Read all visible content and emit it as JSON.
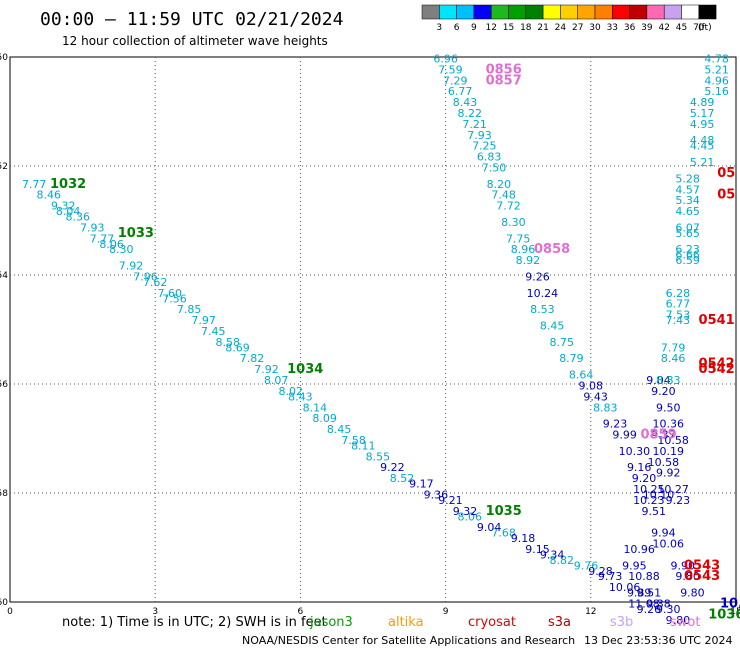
{
  "title": "00:00 – 11:59 UTC 02/21/2024",
  "subtitle": "12 hour collection of altimeter wave heights",
  "colorbar": {
    "labels": [
      "3",
      "6",
      "9",
      "12",
      "15",
      "18",
      "21",
      "24",
      "27",
      "30",
      "33",
      "36",
      "39",
      "42",
      "45",
      "70"
    ],
    "unit": "(ft)",
    "colors": [
      "#7f7f7f",
      "#00e5ff",
      "#00bfff",
      "#0000ff",
      "#1fb81f",
      "#00a000",
      "#008000",
      "#ffff00",
      "#ffcf00",
      "#ffa500",
      "#ff8000",
      "#ff0000",
      "#c00000",
      "#ff69b4",
      "#c8a2f0",
      "#ffffff",
      "#000000"
    ]
  },
  "note": "note:  1) Time is in UTC; 2) SWH is in feet",
  "satellites": [
    {
      "name": "jason3",
      "color": "#00a000"
    },
    {
      "name": "altika",
      "color": "#ff9900"
    },
    {
      "name": "cryosat",
      "color": "#e00000"
    },
    {
      "name": "s3a",
      "color": "#b00000"
    },
    {
      "name": "s3b",
      "color": "#c8a2f0"
    },
    {
      "name": "swot",
      "color": "#e070d0"
    }
  ],
  "credit": "NOAA/NESDIS Center for Satellite Applications and Research",
  "credit_time": "13 Dec 23:53:36 UTC 2024",
  "chart_data": {
    "type": "scatter",
    "xlim": [
      0,
      15
    ],
    "ylim": [
      -60,
      -50
    ],
    "xticks": [
      0,
      3,
      6,
      9,
      12,
      15
    ],
    "yticks": [
      -50,
      -52,
      -54,
      -56,
      -58,
      -60
    ],
    "grid": true,
    "series": [
      {
        "name": "jason3",
        "color": "#00aacc",
        "points": [
          {
            "x": 0.5,
            "y": -52.4,
            "v": "7.77"
          },
          {
            "x": 0.8,
            "y": -52.6,
            "v": "8.46"
          },
          {
            "x": 1.1,
            "y": -52.8,
            "v": "9.32"
          },
          {
            "x": 1.2,
            "y": -52.9,
            "v": "8.04"
          },
          {
            "x": 1.4,
            "y": -53.0,
            "v": "8.36"
          },
          {
            "x": 1.7,
            "y": -53.2,
            "v": "7.93"
          },
          {
            "x": 1.9,
            "y": -53.4,
            "v": "7.77"
          },
          {
            "x": 2.1,
            "y": -53.5,
            "v": "8.06"
          },
          {
            "x": 2.3,
            "y": -53.6,
            "v": "8.30"
          },
          {
            "x": 2.5,
            "y": -53.9,
            "v": "7.92"
          },
          {
            "x": 2.8,
            "y": -54.1,
            "v": "7.96"
          },
          {
            "x": 3.0,
            "y": -54.2,
            "v": "7.62"
          },
          {
            "x": 3.3,
            "y": -54.4,
            "v": "7.60"
          },
          {
            "x": 3.4,
            "y": -54.5,
            "v": "7.56"
          },
          {
            "x": 3.7,
            "y": -54.7,
            "v": "7.85"
          },
          {
            "x": 4.0,
            "y": -54.9,
            "v": "7.97"
          },
          {
            "x": 4.2,
            "y": -55.1,
            "v": "7.45"
          },
          {
            "x": 4.5,
            "y": -55.3,
            "v": "8.58"
          },
          {
            "x": 4.7,
            "y": -55.4,
            "v": "8.69"
          },
          {
            "x": 5.0,
            "y": -55.6,
            "v": "7.82"
          },
          {
            "x": 5.3,
            "y": -55.8,
            "v": "7.92"
          },
          {
            "x": 5.5,
            "y": -56.0,
            "v": "8.07"
          },
          {
            "x": 5.8,
            "y": -56.2,
            "v": "8.02"
          },
          {
            "x": 6.0,
            "y": -56.3,
            "v": "8.43"
          },
          {
            "x": 6.3,
            "y": -56.5,
            "v": "8.14"
          },
          {
            "x": 6.5,
            "y": -56.7,
            "v": "8.09"
          },
          {
            "x": 6.8,
            "y": -56.9,
            "v": "8.45"
          },
          {
            "x": 7.1,
            "y": -57.1,
            "v": "7.58"
          },
          {
            "x": 7.3,
            "y": -57.2,
            "v": "8.11"
          },
          {
            "x": 7.6,
            "y": -57.4,
            "v": "8.55"
          },
          {
            "x": 8.1,
            "y": -57.8,
            "v": "8.52"
          },
          {
            "x": 9.5,
            "y": -58.5,
            "v": "8.06"
          },
          {
            "x": 10.2,
            "y": -58.8,
            "v": "7.68"
          },
          {
            "x": 11.4,
            "y": -59.3,
            "v": "8.82"
          },
          {
            "x": 11.9,
            "y": -59.4,
            "v": "9.76"
          }
        ]
      },
      {
        "name": "jason3-dark",
        "color": "#0000bb",
        "points": [
          {
            "x": 7.9,
            "y": -57.6,
            "v": "9.22"
          },
          {
            "x": 8.5,
            "y": -57.9,
            "v": "9.17"
          },
          {
            "x": 8.8,
            "y": -58.1,
            "v": "9.36"
          },
          {
            "x": 9.1,
            "y": -58.2,
            "v": "9.21"
          },
          {
            "x": 9.4,
            "y": -58.4,
            "v": "9.32"
          },
          {
            "x": 9.9,
            "y": -58.7,
            "v": "9.04"
          },
          {
            "x": 10.6,
            "y": -58.9,
            "v": "9.18"
          },
          {
            "x": 10.9,
            "y": -59.1,
            "v": "9.15"
          },
          {
            "x": 11.2,
            "y": -59.2,
            "v": "9.34"
          },
          {
            "x": 12.2,
            "y": -59.5,
            "v": "9.28"
          },
          {
            "x": 12.4,
            "y": -59.6,
            "v": "9.73"
          },
          {
            "x": 12.7,
            "y": -59.8,
            "v": "10.06"
          },
          {
            "x": 13.0,
            "y": -59.9,
            "v": "9.89"
          },
          {
            "x": 13.1,
            "y": -60.1,
            "v": "11.08"
          },
          {
            "x": 13.2,
            "y": -60.2,
            "v": "9.26"
          }
        ]
      },
      {
        "name": "track2",
        "color": "#00aacc",
        "points": [
          {
            "x": 9.0,
            "y": -50.1,
            "v": "6.96"
          },
          {
            "x": 9.1,
            "y": -50.3,
            "v": "7.59"
          },
          {
            "x": 9.2,
            "y": -50.5,
            "v": "7.29"
          },
          {
            "x": 9.3,
            "y": -50.7,
            "v": "6.77"
          },
          {
            "x": 9.4,
            "y": -50.9,
            "v": "8.43"
          },
          {
            "x": 9.5,
            "y": -51.1,
            "v": "8.22"
          },
          {
            "x": 9.6,
            "y": -51.3,
            "v": "7.21"
          },
          {
            "x": 9.7,
            "y": -51.5,
            "v": "7.93"
          },
          {
            "x": 9.8,
            "y": -51.7,
            "v": "7.25"
          },
          {
            "x": 9.9,
            "y": -51.9,
            "v": "6.83"
          },
          {
            "x": 10.0,
            "y": -52.1,
            "v": "7.50"
          },
          {
            "x": 10.1,
            "y": -52.4,
            "v": "8.20"
          },
          {
            "x": 10.2,
            "y": -52.6,
            "v": "7.48"
          },
          {
            "x": 10.3,
            "y": -52.8,
            "v": "7.72"
          },
          {
            "x": 10.4,
            "y": -53.1,
            "v": "8.30"
          },
          {
            "x": 10.5,
            "y": -53.4,
            "v": "7.75"
          },
          {
            "x": 10.6,
            "y": -53.6,
            "v": "8.96"
          },
          {
            "x": 10.7,
            "y": -53.8,
            "v": "8.92"
          },
          {
            "x": 11.0,
            "y": -54.7,
            "v": "8.53"
          },
          {
            "x": 11.2,
            "y": -55.0,
            "v": "8.45"
          },
          {
            "x": 11.4,
            "y": -55.3,
            "v": "8.75"
          },
          {
            "x": 11.6,
            "y": -55.6,
            "v": "8.79"
          },
          {
            "x": 11.8,
            "y": -55.9,
            "v": "8.64"
          },
          {
            "x": 12.3,
            "y": -56.5,
            "v": "8.83"
          }
        ]
      },
      {
        "name": "track2-dark",
        "color": "#0000bb",
        "points": [
          {
            "x": 10.9,
            "y": -54.1,
            "v": "9.26"
          },
          {
            "x": 11.0,
            "y": -54.4,
            "v": "10.24"
          },
          {
            "x": 12.0,
            "y": -56.1,
            "v": "9.08"
          },
          {
            "x": 12.1,
            "y": -56.3,
            "v": "9.43"
          },
          {
            "x": 12.5,
            "y": -56.8,
            "v": "9.23"
          },
          {
            "x": 12.7,
            "y": -57.0,
            "v": "9.99"
          },
          {
            "x": 12.9,
            "y": -57.3,
            "v": "10.30"
          },
          {
            "x": 13.0,
            "y": -57.6,
            "v": "9.16"
          },
          {
            "x": 13.1,
            "y": -57.8,
            "v": "9.20"
          },
          {
            "x": 13.2,
            "y": -58.0,
            "v": "10.25"
          },
          {
            "x": 13.2,
            "y": -58.2,
            "v": "10.23"
          },
          {
            "x": 13.3,
            "y": -58.4,
            "v": "9.51"
          },
          {
            "x": 13.5,
            "y": -58.8,
            "v": "9.94"
          },
          {
            "x": 13.6,
            "y": -59.0,
            "v": "10.06"
          },
          {
            "x": 13.0,
            "y": -59.1,
            "v": "10.96"
          },
          {
            "x": 12.9,
            "y": -59.4,
            "v": "9.95"
          },
          {
            "x": 13.1,
            "y": -59.6,
            "v": "10.88"
          },
          {
            "x": 13.2,
            "y": -59.9,
            "v": "9.51"
          },
          {
            "x": 13.4,
            "y": -60.1,
            "v": "9.38"
          },
          {
            "x": 13.6,
            "y": -60.2,
            "v": "9.30"
          },
          {
            "x": 13.8,
            "y": -60.4,
            "v": "9.80"
          },
          {
            "x": 13.4,
            "y": -56.0,
            "v": "9.04"
          },
          {
            "x": 13.5,
            "y": -56.2,
            "v": "9.20"
          },
          {
            "x": 13.6,
            "y": -56.5,
            "v": "9.50"
          },
          {
            "x": 13.5,
            "y": -57.0,
            "v": "9.37"
          },
          {
            "x": 13.7,
            "y": -58.0,
            "v": "10.27"
          },
          {
            "x": 13.8,
            "y": -58.2,
            "v": "9.23"
          },
          {
            "x": 13.9,
            "y": -59.4,
            "v": "9.90"
          },
          {
            "x": 14.0,
            "y": -59.6,
            "v": "9.80"
          },
          {
            "x": 14.1,
            "y": -59.9,
            "v": "9.80"
          },
          {
            "x": 13.5,
            "y": -57.5,
            "v": "10.58"
          },
          {
            "x": 13.6,
            "y": -57.7,
            "v": "9.92"
          },
          {
            "x": 13.4,
            "y": -58.1,
            "v": "10.10"
          },
          {
            "x": 13.6,
            "y": -56.8,
            "v": "10.36"
          },
          {
            "x": 13.7,
            "y": -57.1,
            "v": "10.58"
          },
          {
            "x": 13.6,
            "y": -57.3,
            "v": "10.19"
          }
        ]
      },
      {
        "name": "track3",
        "color": "#00aacc",
        "points": [
          {
            "x": 14.6,
            "y": -50.1,
            "v": "4.78"
          },
          {
            "x": 14.6,
            "y": -50.3,
            "v": "5.21"
          },
          {
            "x": 14.6,
            "y": -50.5,
            "v": "4.96"
          },
          {
            "x": 14.6,
            "y": -50.7,
            "v": "5.16"
          },
          {
            "x": 14.3,
            "y": -50.9,
            "v": "4.89"
          },
          {
            "x": 14.3,
            "y": -51.1,
            "v": "5.17"
          },
          {
            "x": 14.3,
            "y": -51.3,
            "v": "4.95"
          },
          {
            "x": 14.3,
            "y": -51.6,
            "v": "4.48"
          },
          {
            "x": 14.3,
            "y": -51.7,
            "v": "4.45"
          },
          {
            "x": 14.3,
            "y": -52.0,
            "v": "5.21"
          },
          {
            "x": 14.0,
            "y": -52.3,
            "v": "5.28"
          },
          {
            "x": 14.0,
            "y": -52.5,
            "v": "4.57"
          },
          {
            "x": 14.0,
            "y": -52.7,
            "v": "5.34"
          },
          {
            "x": 14.0,
            "y": -52.9,
            "v": "4.65"
          },
          {
            "x": 14.0,
            "y": -53.2,
            "v": "6.07"
          },
          {
            "x": 14.0,
            "y": -53.3,
            "v": "5.65"
          },
          {
            "x": 14.0,
            "y": -53.6,
            "v": "6.23"
          },
          {
            "x": 14.0,
            "y": -53.7,
            "v": "6.66"
          },
          {
            "x": 14.0,
            "y": -53.8,
            "v": "6.59"
          },
          {
            "x": 13.8,
            "y": -54.4,
            "v": "6.28"
          },
          {
            "x": 13.8,
            "y": -54.6,
            "v": "6.77"
          },
          {
            "x": 13.8,
            "y": -54.8,
            "v": "7.53"
          },
          {
            "x": 13.8,
            "y": -54.9,
            "v": "7.43"
          },
          {
            "x": 13.7,
            "y": -55.4,
            "v": "7.79"
          },
          {
            "x": 13.7,
            "y": -55.6,
            "v": "8.46"
          },
          {
            "x": 13.6,
            "y": -56.0,
            "v": "8.83"
          }
        ]
      }
    ],
    "time_labels": [
      {
        "x": 1.2,
        "y": -52.4,
        "v": "1032",
        "color": "#008000"
      },
      {
        "x": 2.6,
        "y": -53.3,
        "v": "1033",
        "color": "#008000"
      },
      {
        "x": 6.1,
        "y": -55.8,
        "v": "1034",
        "color": "#008000"
      },
      {
        "x": 10.2,
        "y": -58.4,
        "v": "1035",
        "color": "#008000"
      },
      {
        "x": 14.8,
        "y": -60.3,
        "v": "1036",
        "color": "#008000"
      },
      {
        "x": 10.2,
        "y": -50.3,
        "v": "0856",
        "color": "#e070d0"
      },
      {
        "x": 10.2,
        "y": -50.5,
        "v": "0857",
        "color": "#e070d0"
      },
      {
        "x": 11.2,
        "y": -53.6,
        "v": "0858",
        "color": "#e070d0"
      },
      {
        "x": 13.4,
        "y": -57.0,
        "v": "0859",
        "color": "#e070d0"
      },
      {
        "x": 14.8,
        "y": -52.2,
        "v": "05",
        "color": "#e00000"
      },
      {
        "x": 14.8,
        "y": -52.6,
        "v": "05",
        "color": "#e00000"
      },
      {
        "x": 14.6,
        "y": -54.9,
        "v": "0541",
        "color": "#e00000"
      },
      {
        "x": 14.6,
        "y": -55.7,
        "v": "0542",
        "color": "#e00000"
      },
      {
        "x": 14.6,
        "y": -55.8,
        "v": "0542",
        "color": "#e00000"
      },
      {
        "x": 14.3,
        "y": -59.4,
        "v": "0543",
        "color": "#e00000"
      },
      {
        "x": 14.3,
        "y": -59.6,
        "v": "0543",
        "color": "#e00000"
      },
      {
        "x": 15.0,
        "y": -60.1,
        "v": "10.3",
        "color": "#0000bb"
      }
    ]
  }
}
